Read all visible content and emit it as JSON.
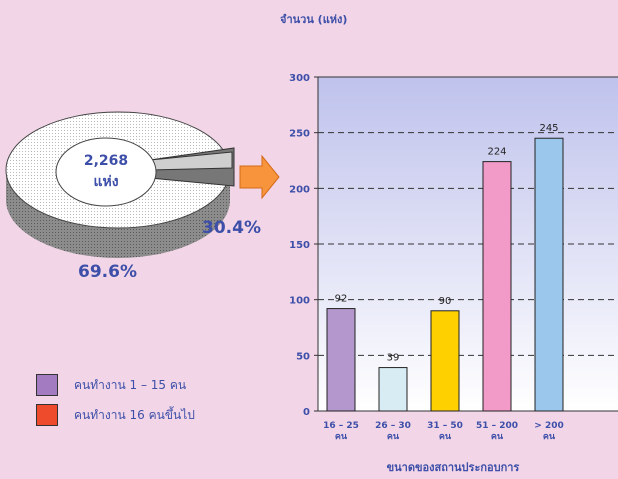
{
  "pie": {
    "center_value": "2,268",
    "center_unit": "แห่ง",
    "slices": [
      {
        "label": "คนทำงาน 1 – 15 คน",
        "percent_label": "69.6%",
        "value": 69.6,
        "color": "#a37bc0"
      },
      {
        "label": "คนทำงาน 16 คนขึ้นไป",
        "percent_label": "30.4%",
        "value": 30.4,
        "color": "#ee4a2c"
      }
    ]
  },
  "chart_data": {
    "type": "bar",
    "ylabel": "จำนวน (แห่ง)",
    "xlabel": "ขนาดของสถานประกอบการ",
    "categories": [
      "16 – 25 คน",
      "26 – 30 คน",
      "31 – 50 คน",
      "51 – 200 คน",
      "> 200 คน"
    ],
    "category_lines": [
      [
        "16 – 25",
        "คน"
      ],
      [
        "26 – 30",
        "คน"
      ],
      [
        "31 – 50",
        "คน"
      ],
      [
        "51 – 200",
        "คน"
      ],
      [
        "> 200",
        "คน"
      ]
    ],
    "values": [
      92,
      39,
      90,
      224,
      245
    ],
    "colors": [
      "#b497cc",
      "#d8ecf4",
      "#ffd000",
      "#f29ac8",
      "#9cc7ec"
    ],
    "ylim": [
      0,
      300
    ],
    "yticks": [
      0,
      50,
      100,
      150,
      200,
      250,
      300
    ],
    "grid": "dashed horizontal",
    "legend": "none"
  }
}
